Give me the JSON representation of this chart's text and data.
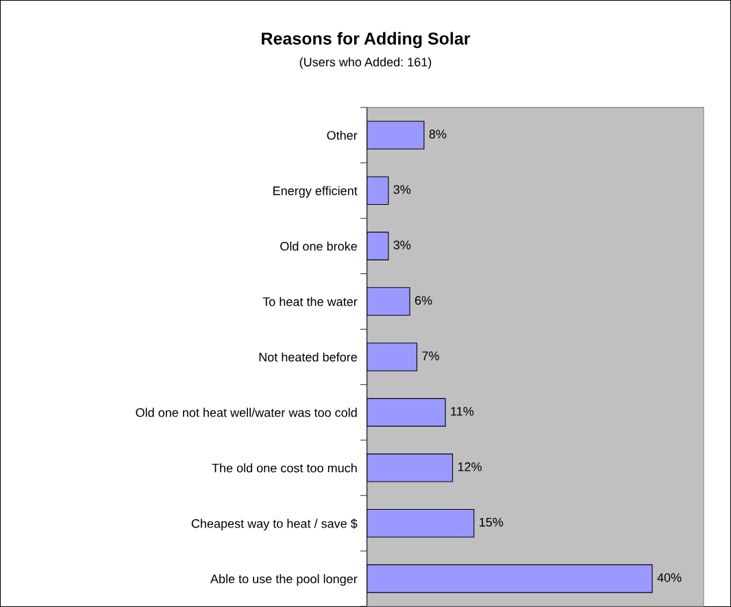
{
  "chart_data": {
    "type": "bar",
    "orientation": "horizontal",
    "title": "Reasons for Adding Solar",
    "subtitle": "(Users who Added: 161)",
    "categories": [
      "Other",
      "Energy efficient",
      "Old one broke",
      "To heat the water",
      "Not heated before",
      "Old one not heat well/water was too cold",
      "The old one cost too much",
      "Cheapest way to heat / save $",
      "Able to use the pool longer"
    ],
    "values": [
      8,
      3,
      3,
      6,
      7,
      11,
      12,
      15,
      40
    ],
    "value_labels": [
      "8%",
      "3%",
      "3%",
      "6%",
      "7%",
      "11%",
      "12%",
      "15%",
      "40%"
    ],
    "color": "#9999ff",
    "grid": false,
    "legend": false
  }
}
